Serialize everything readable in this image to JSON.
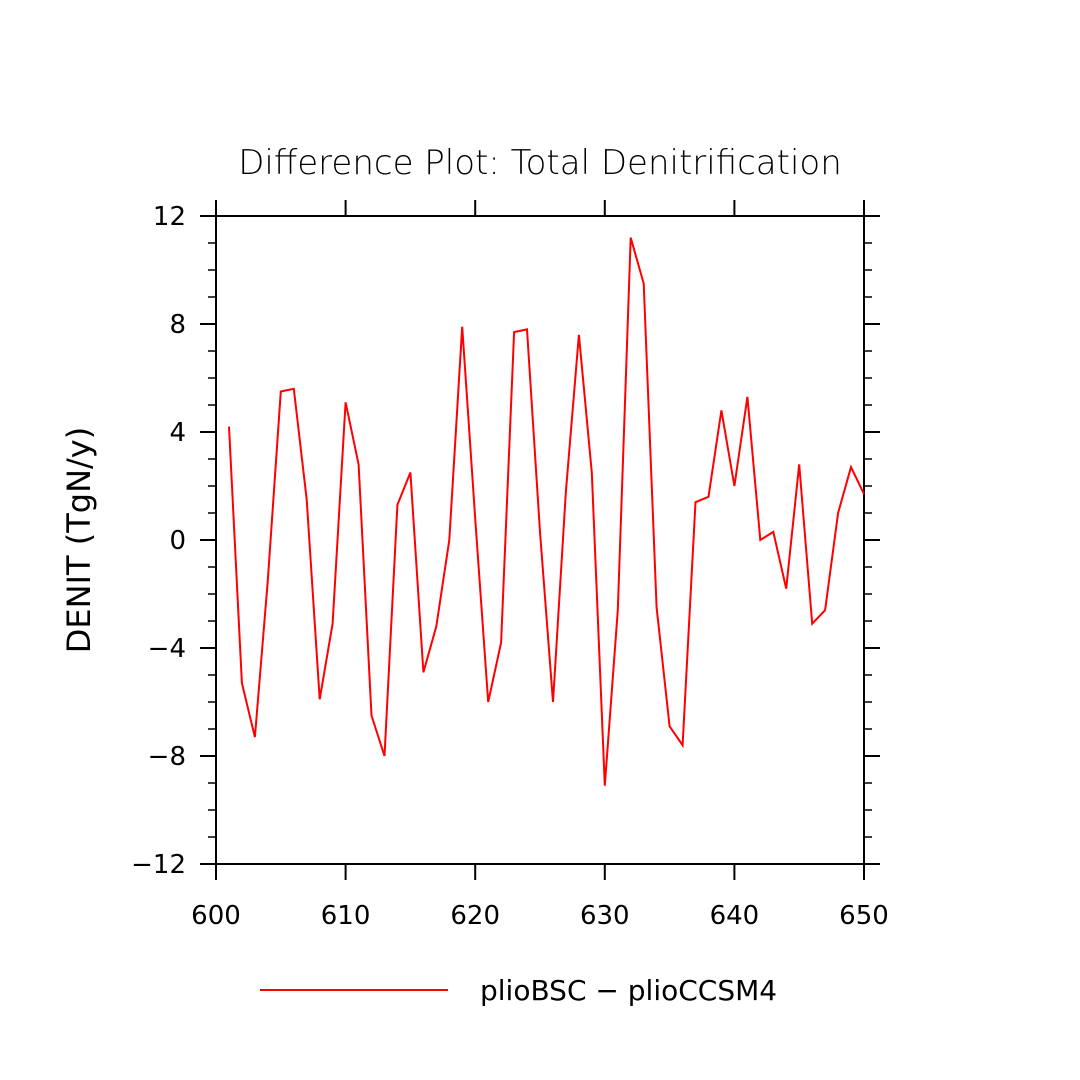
{
  "chart_data": {
    "type": "line",
    "title": "Difference Plot: Total Denitrification",
    "xlabel": "",
    "ylabel": "DENIT  (TgN/y)",
    "xlim": [
      600,
      650
    ],
    "ylim": [
      -12,
      12
    ],
    "x_ticks": [
      600,
      610,
      620,
      630,
      640,
      650
    ],
    "x_tick_labels": [
      "600",
      "610",
      "620",
      "630",
      "640",
      "650"
    ],
    "y_ticks": [
      -12,
      -8,
      -4,
      0,
      4,
      8,
      12
    ],
    "y_tick_labels": [
      "−12",
      "−8",
      "−4",
      "0",
      "4",
      "8",
      "12"
    ],
    "grid": false,
    "legend_position": "bottom",
    "series": [
      {
        "name": "plioBSC − plioCCSM4",
        "color": "#ff0000",
        "x": [
          601,
          602,
          603,
          604,
          605,
          606,
          607,
          608,
          609,
          610,
          611,
          612,
          613,
          614,
          615,
          616,
          617,
          618,
          619,
          620,
          621,
          622,
          623,
          624,
          625,
          626,
          627,
          628,
          629,
          630,
          631,
          632,
          633,
          634,
          635,
          636,
          637,
          638,
          639,
          640,
          641,
          642,
          643,
          644,
          645,
          646,
          647,
          648,
          649,
          650
        ],
        "values": [
          4.2,
          -5.3,
          -7.3,
          -1.5,
          5.5,
          5.6,
          1.5,
          -5.9,
          -3.1,
          5.1,
          2.8,
          -6.5,
          -8.0,
          1.3,
          2.5,
          -4.9,
          -3.2,
          0.0,
          7.9,
          0.8,
          -6.0,
          -3.8,
          7.7,
          7.8,
          0.3,
          -6.0,
          1.8,
          7.6,
          2.5,
          -9.1,
          -2.6,
          11.2,
          9.5,
          -2.5,
          -6.9,
          -7.6,
          1.4,
          1.6,
          4.8,
          2.0,
          5.3,
          0.0,
          0.3,
          -1.8,
          2.8,
          -3.1,
          -2.6,
          1.0,
          2.7,
          1.7
        ]
      }
    ]
  }
}
